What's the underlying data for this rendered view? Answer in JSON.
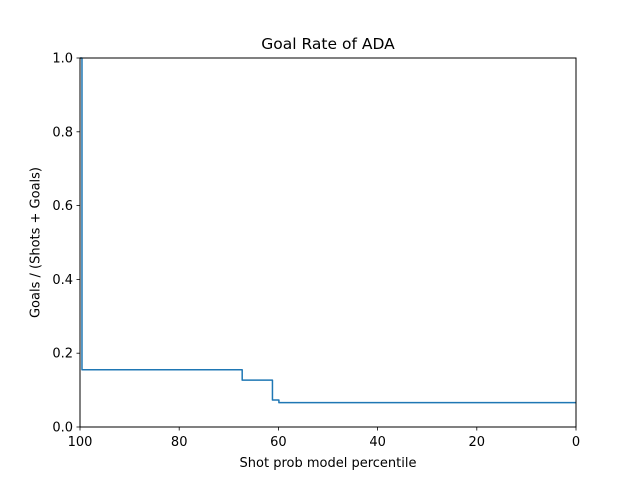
{
  "chart_data": {
    "type": "line",
    "title": "Goal Rate of ADA",
    "xlabel": "Shot prob model percentile",
    "ylabel": "Goals / (Shots + Goals)",
    "xlim": [
      100,
      0
    ],
    "ylim": [
      0,
      1.0
    ],
    "x_inverted": true,
    "grid": false,
    "legend": "none",
    "x_ticks": [
      100,
      80,
      60,
      40,
      20,
      0
    ],
    "x_tick_labels": [
      "100",
      "80",
      "60",
      "40",
      "20",
      "0"
    ],
    "y_ticks": [
      0.0,
      0.2,
      0.4,
      0.6,
      0.8,
      1.0
    ],
    "y_tick_labels": [
      "0.0",
      "0.2",
      "0.4",
      "0.6",
      "0.8",
      "1.0"
    ],
    "series": [
      {
        "color": "#1f77b4",
        "step": true,
        "x": [
          100,
          99.6,
          99.6,
          67.3,
          67.3,
          61.2,
          61.2,
          59.9,
          59.9,
          0
        ],
        "y": [
          1.0,
          1.0,
          0.155,
          0.155,
          0.127,
          0.127,
          0.073,
          0.073,
          0.066,
          0.066
        ]
      }
    ]
  }
}
